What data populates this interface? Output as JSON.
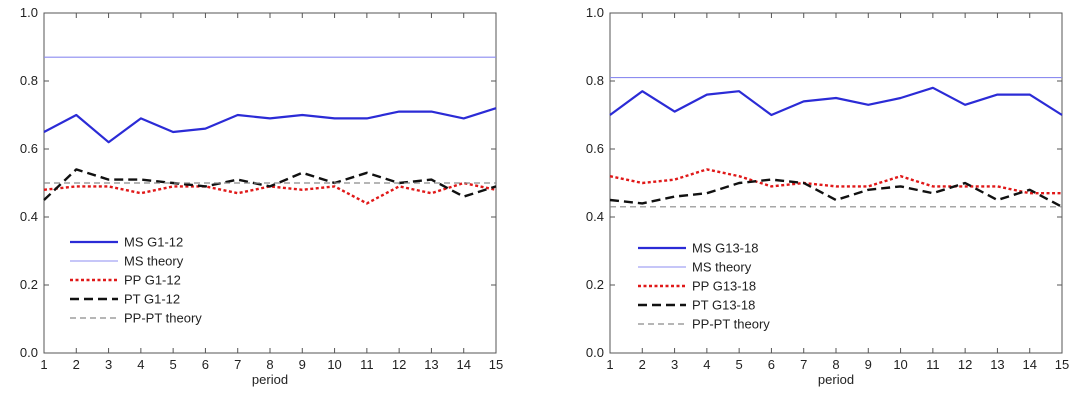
{
  "chart_data": [
    {
      "type": "line",
      "title": "",
      "xlabel": "period",
      "ylabel": "",
      "xlim": [
        1,
        15
      ],
      "ylim": [
        0.0,
        1.0
      ],
      "x": [
        1,
        2,
        3,
        4,
        5,
        6,
        7,
        8,
        9,
        10,
        11,
        12,
        13,
        14,
        15
      ],
      "xticks": [
        "1",
        "2",
        "3",
        "4",
        "5",
        "6",
        "7",
        "8",
        "9",
        "10",
        "11",
        "12",
        "13",
        "14",
        "15"
      ],
      "yticks": [
        "0.0",
        "0.2",
        "0.4",
        "0.6",
        "0.8",
        "1.0"
      ],
      "legend_position": "bottom-left",
      "series": [
        {
          "name": "MS G1-12",
          "color": "#2b2bd6",
          "style": "solid-thick",
          "values": [
            0.65,
            0.7,
            0.62,
            0.69,
            0.65,
            0.66,
            0.7,
            0.69,
            0.7,
            0.69,
            0.69,
            0.71,
            0.71,
            0.69,
            0.72
          ]
        },
        {
          "name": "MS theory",
          "color": "#8c8cf0",
          "style": "solid-thin",
          "values": [
            0.87,
            0.87,
            0.87,
            0.87,
            0.87,
            0.87,
            0.87,
            0.87,
            0.87,
            0.87,
            0.87,
            0.87,
            0.87,
            0.87,
            0.87
          ]
        },
        {
          "name": "PP G1-12",
          "color": "#e01818",
          "style": "dotted",
          "values": [
            0.48,
            0.49,
            0.49,
            0.47,
            0.49,
            0.49,
            0.47,
            0.49,
            0.48,
            0.49,
            0.44,
            0.49,
            0.47,
            0.5,
            0.48
          ]
        },
        {
          "name": "PT G1-12",
          "color": "#111111",
          "style": "dashed-thick",
          "values": [
            0.45,
            0.54,
            0.51,
            0.51,
            0.5,
            0.49,
            0.51,
            0.49,
            0.53,
            0.5,
            0.53,
            0.5,
            0.51,
            0.46,
            0.49
          ]
        },
        {
          "name": "PP-PT theory",
          "color": "#8a8a8a",
          "style": "dashed-thin",
          "values": [
            0.5,
            0.5,
            0.5,
            0.5,
            0.5,
            0.5,
            0.5,
            0.5,
            0.5,
            0.5,
            0.5,
            0.5,
            0.5,
            0.5,
            0.5
          ]
        }
      ]
    },
    {
      "type": "line",
      "title": "",
      "xlabel": "period",
      "ylabel": "",
      "xlim": [
        1,
        15
      ],
      "ylim": [
        0.0,
        1.0
      ],
      "x": [
        1,
        2,
        3,
        4,
        5,
        6,
        7,
        8,
        9,
        10,
        11,
        12,
        13,
        14,
        15
      ],
      "xticks": [
        "1",
        "2",
        "3",
        "4",
        "5",
        "6",
        "7",
        "8",
        "9",
        "10",
        "11",
        "12",
        "13",
        "14",
        "15"
      ],
      "yticks": [
        "0.0",
        "0.2",
        "0.4",
        "0.6",
        "0.8",
        "1.0"
      ],
      "legend_position": "bottom-left",
      "series": [
        {
          "name": "MS G13-18",
          "color": "#2b2bd6",
          "style": "solid-thick",
          "values": [
            0.7,
            0.77,
            0.71,
            0.76,
            0.77,
            0.7,
            0.74,
            0.75,
            0.73,
            0.75,
            0.78,
            0.73,
            0.76,
            0.76,
            0.7
          ]
        },
        {
          "name": "MS theory",
          "color": "#8c8cf0",
          "style": "solid-thin",
          "values": [
            0.81,
            0.81,
            0.81,
            0.81,
            0.81,
            0.81,
            0.81,
            0.81,
            0.81,
            0.81,
            0.81,
            0.81,
            0.81,
            0.81,
            0.81
          ]
        },
        {
          "name": "PP G13-18",
          "color": "#e01818",
          "style": "dotted",
          "values": [
            0.52,
            0.5,
            0.51,
            0.54,
            0.52,
            0.49,
            0.5,
            0.49,
            0.49,
            0.52,
            0.49,
            0.49,
            0.49,
            0.47,
            0.47
          ]
        },
        {
          "name": "PT G13-18",
          "color": "#111111",
          "style": "dashed-thick",
          "values": [
            0.45,
            0.44,
            0.46,
            0.47,
            0.5,
            0.51,
            0.5,
            0.45,
            0.48,
            0.49,
            0.47,
            0.5,
            0.45,
            0.48,
            0.43
          ]
        },
        {
          "name": "PP-PT theory",
          "color": "#8a8a8a",
          "style": "dashed-thin",
          "values": [
            0.43,
            0.43,
            0.43,
            0.43,
            0.43,
            0.43,
            0.43,
            0.43,
            0.43,
            0.43,
            0.43,
            0.43,
            0.43,
            0.43,
            0.43
          ]
        }
      ]
    }
  ]
}
